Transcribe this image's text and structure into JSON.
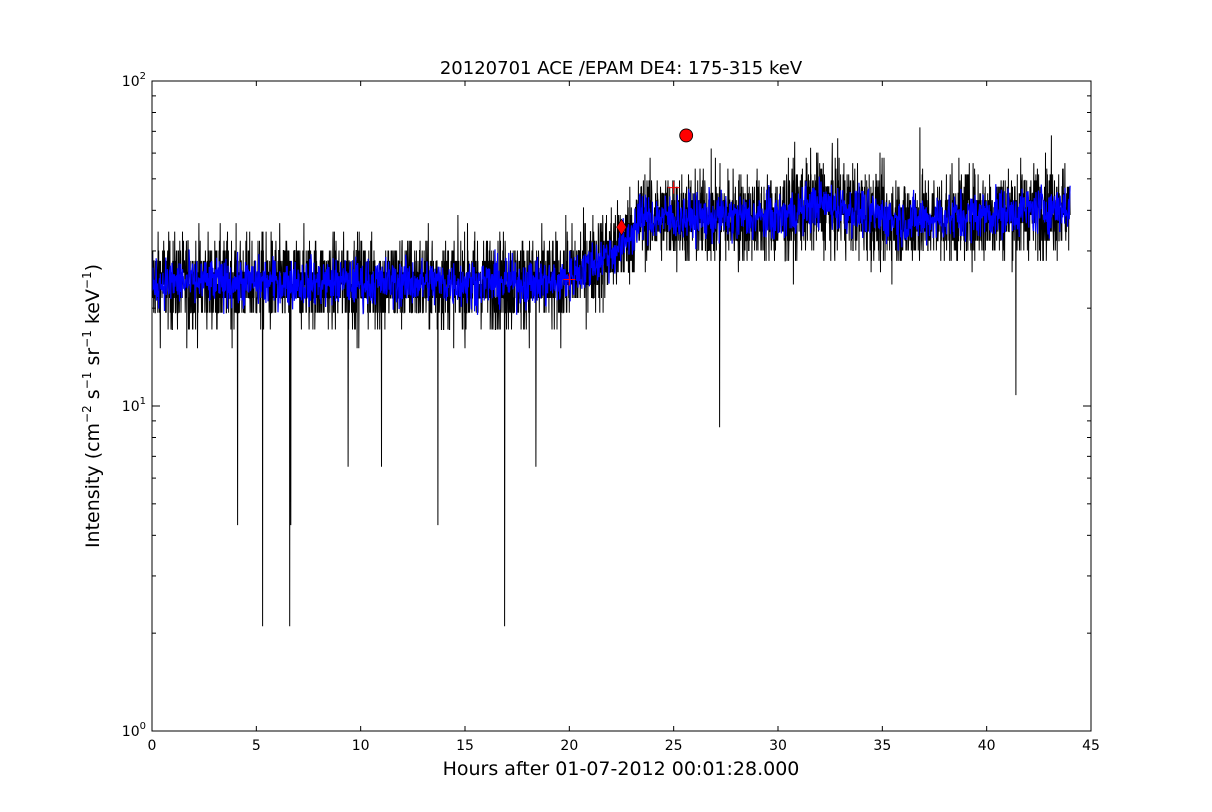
{
  "chart_data": {
    "type": "line",
    "title": "20120701 ACE /EPAM DE4: 175-315 keV",
    "xlabel": "Hours after 01-07-2012 00:01:28.000",
    "ylabel": {
      "prefix": "Intensity (cm",
      "exp1": "−2",
      "s": " s",
      "exp2": "−1",
      "sr": " sr",
      "exp3": "−1",
      "kev": " keV",
      "exp4": "−1",
      "suffix": ")"
    },
    "xlim": [
      0,
      45
    ],
    "ylim": [
      1,
      100
    ],
    "yscale": "log",
    "grid": false,
    "x_ticks": [
      "0",
      "5",
      "10",
      "15",
      "20",
      "25",
      "30",
      "35",
      "40",
      "45"
    ],
    "y_ticks": [
      {
        "base": "10",
        "exp": "0",
        "value": 1
      },
      {
        "base": "10",
        "exp": "1",
        "value": 10
      },
      {
        "base": "10",
        "exp": "2",
        "value": 100
      }
    ],
    "colors": {
      "raw": "#000000",
      "smoothed": "#0000ff",
      "markers": "#ff0000"
    },
    "series": [
      {
        "key": "raw",
        "x_range": [
          0,
          44
        ],
        "x_step": 0.01,
        "baseline": [
          [
            0,
            24
          ],
          [
            10,
            24
          ],
          [
            19.5,
            24
          ],
          [
            21,
            27
          ],
          [
            22.5,
            31
          ],
          [
            23.5,
            38
          ],
          [
            30,
            38
          ],
          [
            32,
            42
          ],
          [
            36,
            37
          ],
          [
            44,
            41
          ]
        ],
        "noise_band": 0.2,
        "spikes_down": [
          [
            4.1,
            4.3
          ],
          [
            5.3,
            2.1
          ],
          [
            6.6,
            2.1
          ],
          [
            6.65,
            4.3
          ],
          [
            9.4,
            6.5
          ],
          [
            11,
            6.5
          ],
          [
            13.7,
            4.3
          ],
          [
            16.9,
            2.1
          ],
          [
            18.4,
            6.5
          ],
          [
            27.2,
            8.6
          ],
          [
            41.4,
            10.8
          ]
        ],
        "spikes_up": [
          [
            26.8,
            62
          ],
          [
            36.8,
            72
          ],
          [
            43.1,
            68
          ],
          [
            30.8,
            65
          ]
        ]
      },
      {
        "key": "smoothed",
        "x_range": [
          0,
          44
        ],
        "x_step": 0.02,
        "noise_band": 0.1
      }
    ],
    "markers": [
      {
        "shape": "plus",
        "x": 20,
        "y": 24.5
      },
      {
        "shape": "plus",
        "x": 25,
        "y": 47
      },
      {
        "shape": "diamond",
        "x": 22.5,
        "y": 35.5
      },
      {
        "shape": "circle",
        "x": 25.6,
        "y": 68
      }
    ]
  }
}
